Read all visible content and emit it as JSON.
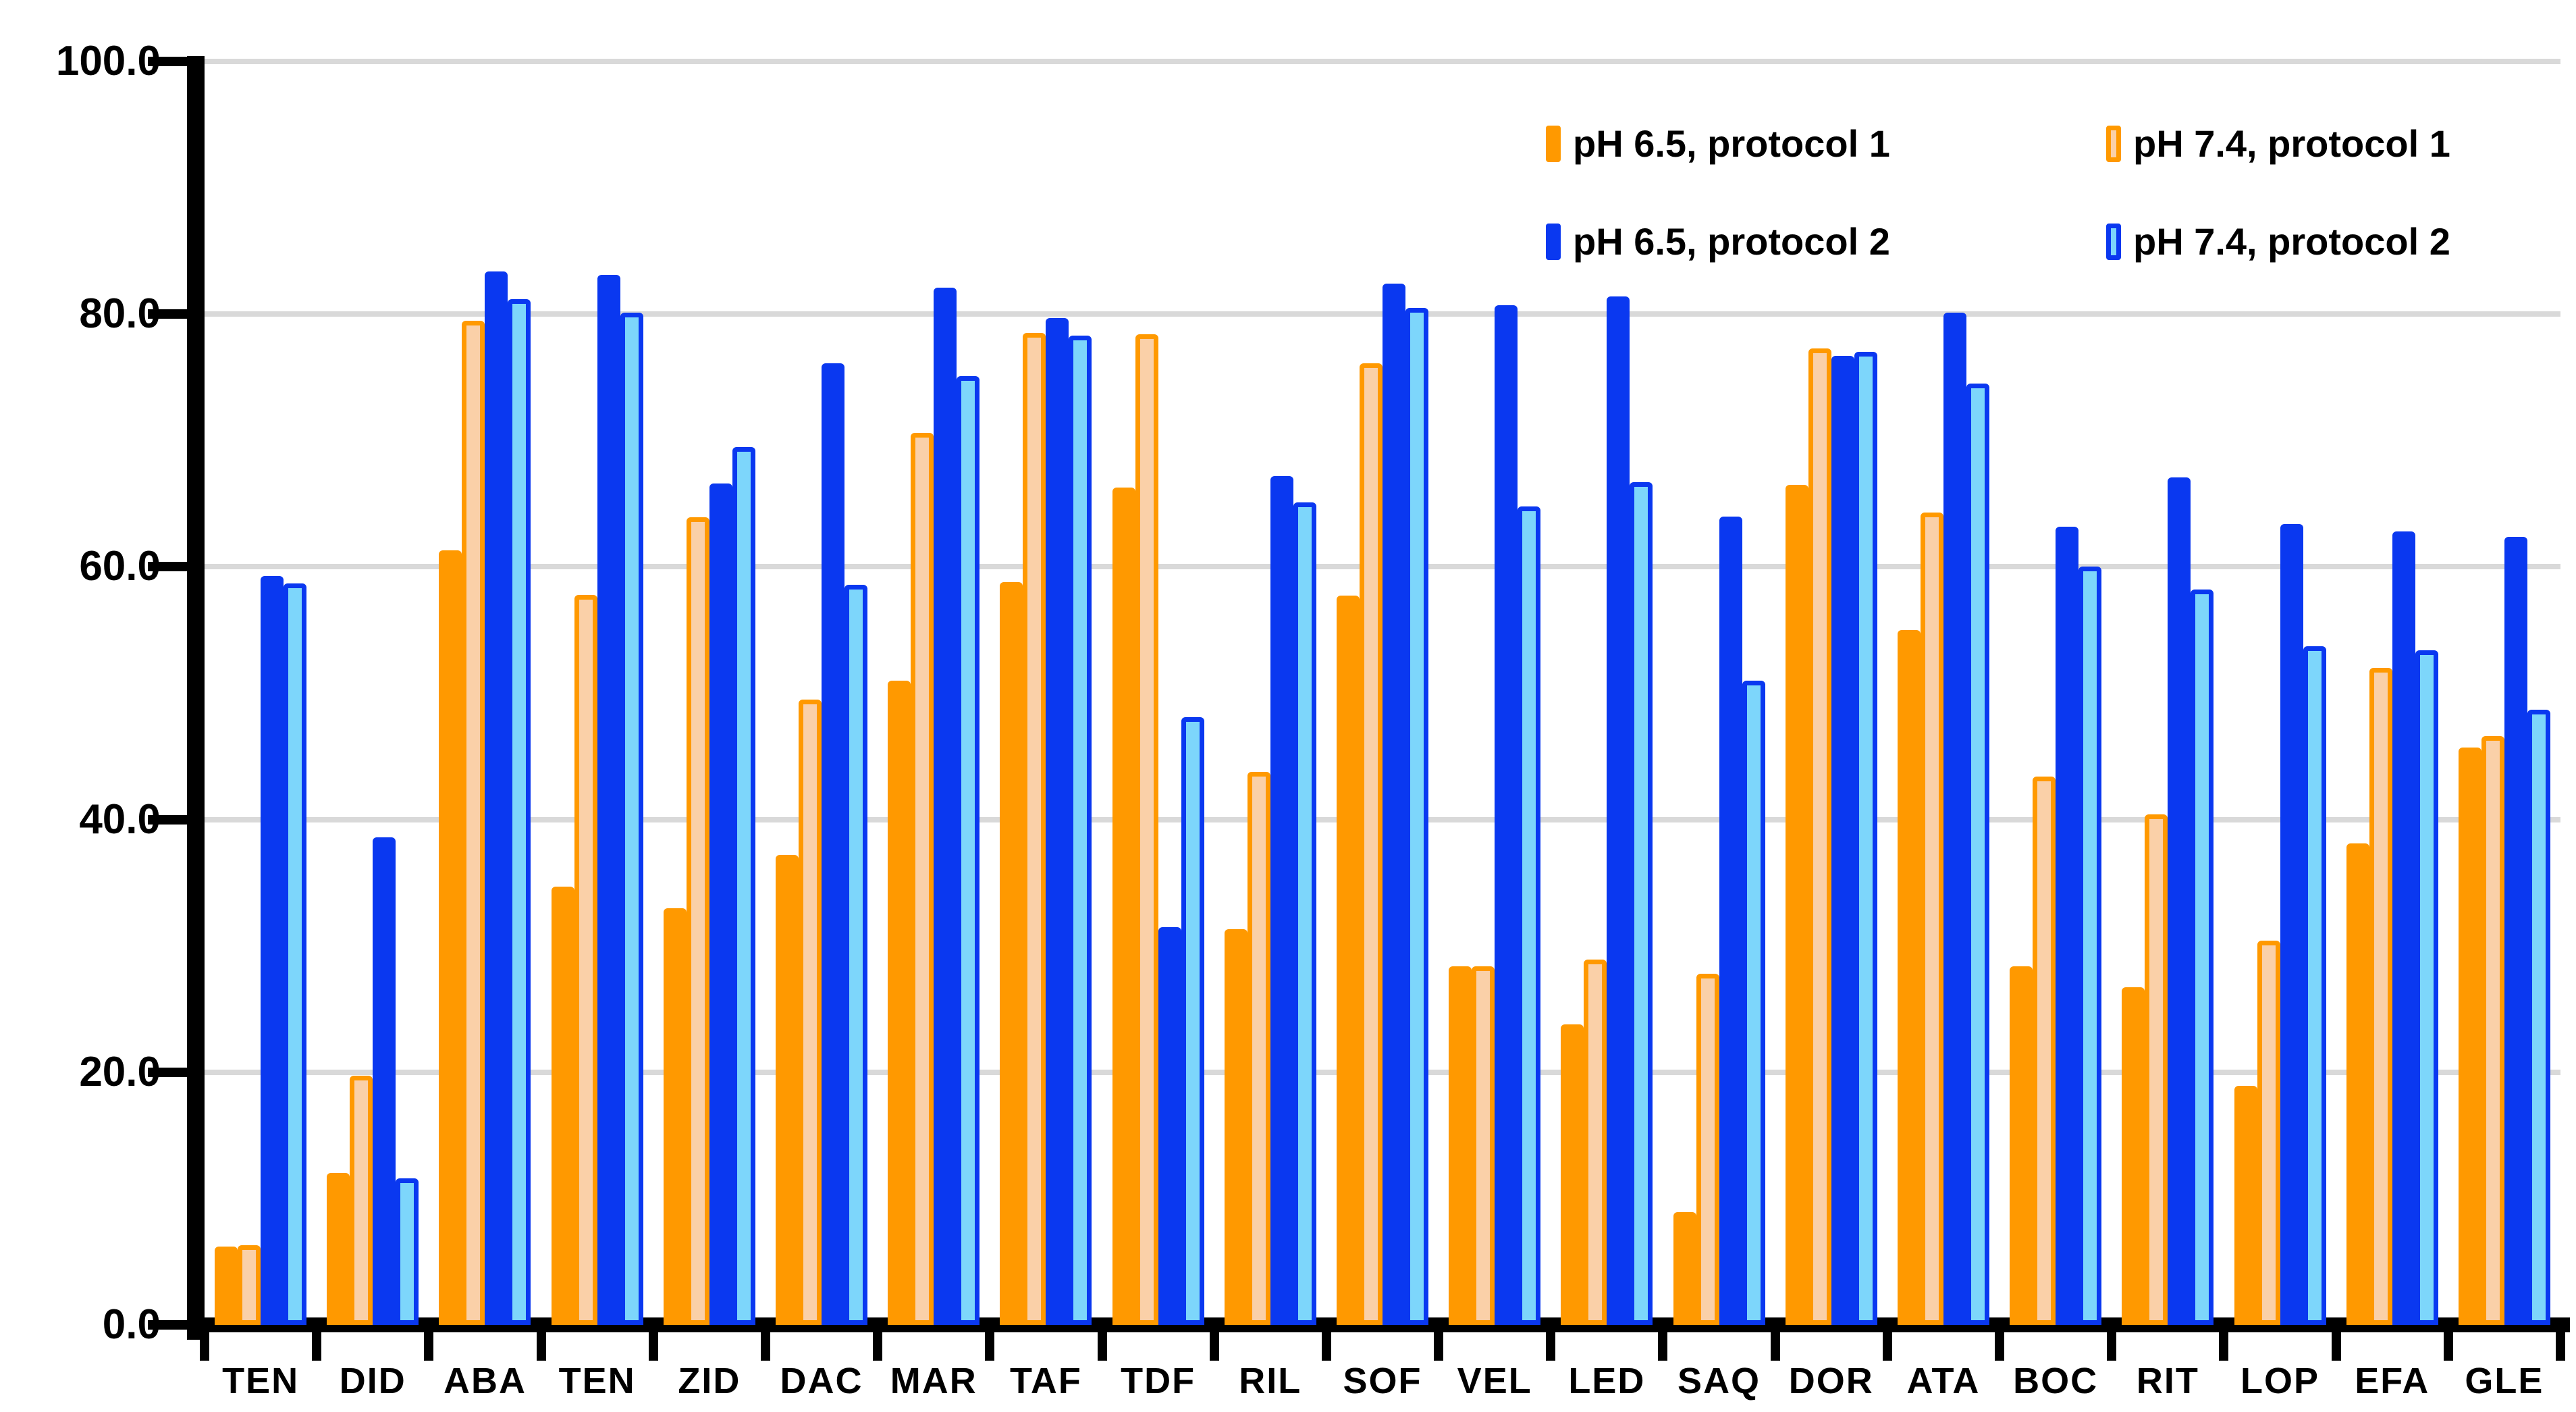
{
  "chart_data": {
    "type": "bar",
    "title": "",
    "xlabel": "",
    "ylabel": "",
    "ylim": [
      0,
      100
    ],
    "ytick_labels": [
      "0.0",
      "20.0",
      "40.0",
      "60.0",
      "80.0",
      "100.0"
    ],
    "ytick_values": [
      0,
      20,
      40,
      60,
      80,
      100
    ],
    "grid": true,
    "gridline_color": "#d9d9d9",
    "axis_color": "#000000",
    "legend_position": "top-right",
    "categories": [
      "TEN",
      "DID",
      "ABA",
      "TEN",
      "ZID",
      "DAC",
      "MAR",
      "TAF",
      "TDF",
      "RIL",
      "SOF",
      "VEL",
      "LED",
      "SAQ",
      "DOR",
      "ATA",
      "BOC",
      "RIT",
      "LOP",
      "EFA",
      "GLE"
    ],
    "series": [
      {
        "name": "pH 6.5, protocol 1",
        "fill": "#FF9900",
        "border": "#FF9900",
        "values": [
          6.2,
          12.0,
          61.3,
          34.7,
          33.0,
          37.2,
          51.0,
          58.8,
          66.3,
          31.3,
          57.7,
          28.4,
          23.8,
          8.9,
          66.5,
          55.0,
          28.4,
          26.7,
          18.9,
          38.1,
          45.7
        ]
      },
      {
        "name": "pH 7.4, protocol 1",
        "fill": "#FAD0A8",
        "border": "#FF9900",
        "values": [
          6.3,
          19.7,
          79.5,
          57.8,
          63.9,
          49.5,
          70.6,
          78.5,
          78.4,
          43.8,
          76.1,
          28.4,
          28.9,
          27.8,
          77.3,
          64.3,
          43.4,
          40.4,
          30.4,
          52.0,
          46.6
        ]
      },
      {
        "name": "pH 6.5, protocol 2",
        "fill": "#0A38F0",
        "border": "#0A38F0",
        "values": [
          59.3,
          38.6,
          83.4,
          83.1,
          66.6,
          76.1,
          82.1,
          79.7,
          31.5,
          67.2,
          82.4,
          80.7,
          81.4,
          64.0,
          76.7,
          80.1,
          63.2,
          67.1,
          63.4,
          62.8,
          62.4
        ]
      },
      {
        "name": "pH 7.4, protocol 2",
        "fill": "#7DD6FB",
        "border": "#0A38F0",
        "values": [
          58.7,
          11.6,
          81.2,
          80.1,
          69.5,
          58.6,
          75.1,
          78.3,
          48.1,
          65.1,
          80.5,
          64.8,
          66.7,
          51.0,
          77.0,
          74.5,
          60.0,
          58.2,
          53.7,
          53.4,
          48.7
        ]
      }
    ]
  }
}
